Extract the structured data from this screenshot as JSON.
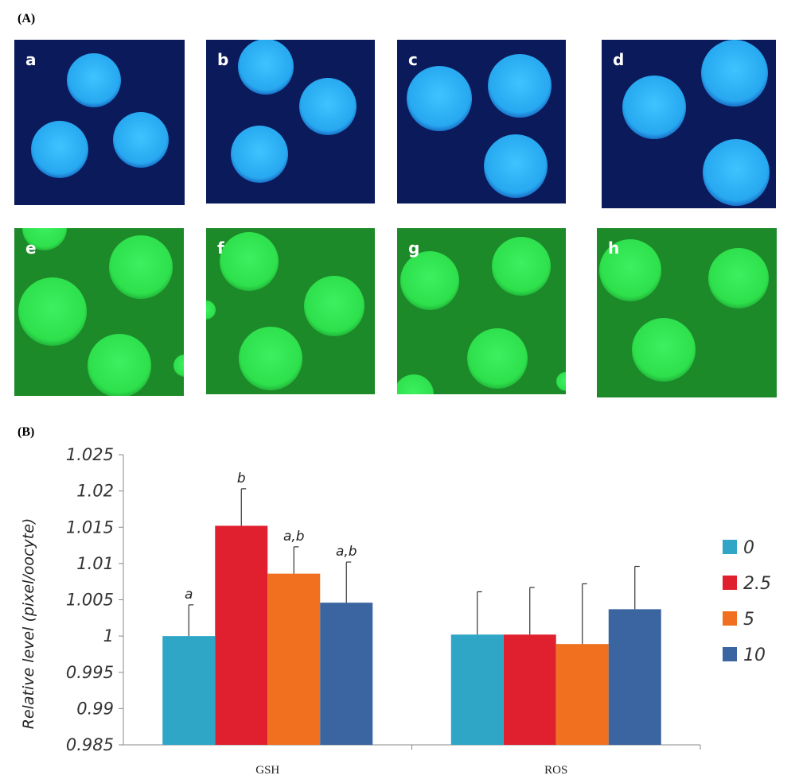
{
  "panel_a": {
    "label": "(A)",
    "images": [
      {
        "label": "a"
      },
      {
        "label": "b"
      },
      {
        "label": "c"
      },
      {
        "label": "d"
      },
      {
        "label": "e"
      },
      {
        "label": "f"
      },
      {
        "label": "g"
      },
      {
        "label": "h"
      }
    ]
  },
  "chart_data": {
    "type": "bar",
    "panel_label": "(B)",
    "y_label": "Relative level (pixel/oocyte)",
    "categories": [
      "GSH",
      "ROS"
    ],
    "series": [
      {
        "name": "0",
        "color": "#2fa6c6",
        "values": [
          1.0,
          1.0002
        ],
        "errors": [
          0.0043,
          0.0059
        ],
        "significance": [
          "a",
          null
        ]
      },
      {
        "name": "2.5",
        "color": "#e0202f",
        "values": [
          1.0152,
          1.0002
        ],
        "errors": [
          0.0051,
          0.0065
        ],
        "significance": [
          "b",
          null
        ]
      },
      {
        "name": "5",
        "color": "#f07020",
        "values": [
          1.0086,
          0.9989
        ],
        "errors": [
          0.0037,
          0.0083
        ],
        "significance": [
          "a,b",
          null
        ]
      },
      {
        "name": "10",
        "color": "#3b65a0",
        "values": [
          1.0046,
          1.0037
        ],
        "errors": [
          0.0056,
          0.0059
        ],
        "significance": [
          "a,b",
          null
        ]
      }
    ],
    "ylim": [
      0.985,
      1.025
    ],
    "yticks": [
      0.985,
      0.99,
      0.995,
      1,
      1.005,
      1.01,
      1.015,
      1.02,
      1.025
    ],
    "grid": false,
    "legend": "right"
  }
}
